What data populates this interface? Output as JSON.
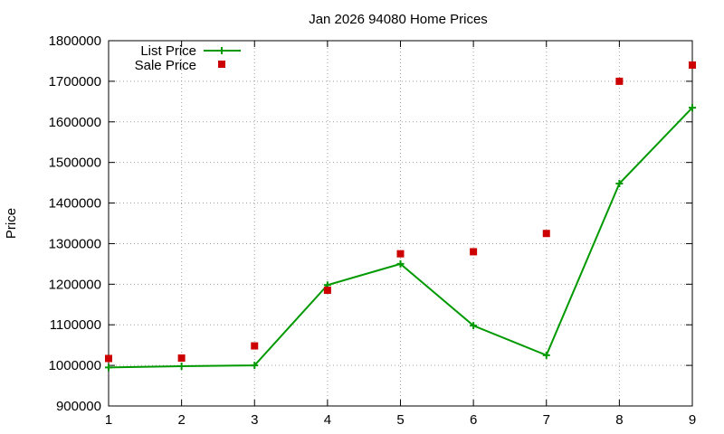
{
  "chart_data": {
    "type": "line",
    "title": "Jan 2026 94080 Home Prices",
    "xlabel": "",
    "ylabel": "Price",
    "x": [
      1,
      2,
      3,
      4,
      5,
      6,
      7,
      8,
      9
    ],
    "xlim": [
      1,
      9
    ],
    "ylim": [
      900000,
      1800000
    ],
    "xticks": [
      "1",
      "2",
      "3",
      "4",
      "5",
      "6",
      "7",
      "8",
      "9"
    ],
    "yticks": [
      "900000",
      "1000000",
      "1100000",
      "1200000",
      "1300000",
      "1400000",
      "1500000",
      "1600000",
      "1700000",
      "1800000"
    ],
    "grid": true,
    "legend_position": "top-left",
    "series": [
      {
        "name": "List Price",
        "style": "line-with-plus-markers",
        "color": "#009900",
        "values": [
          995000,
          998000,
          1000000,
          1198000,
          1250000,
          1098000,
          1025000,
          1448000,
          1635000
        ]
      },
      {
        "name": "Sale Price",
        "style": "square-markers",
        "color": "#cc0000",
        "values": [
          1017000,
          1018000,
          1048000,
          1185000,
          1275000,
          1280000,
          1325000,
          1700000,
          1740000
        ]
      }
    ]
  }
}
